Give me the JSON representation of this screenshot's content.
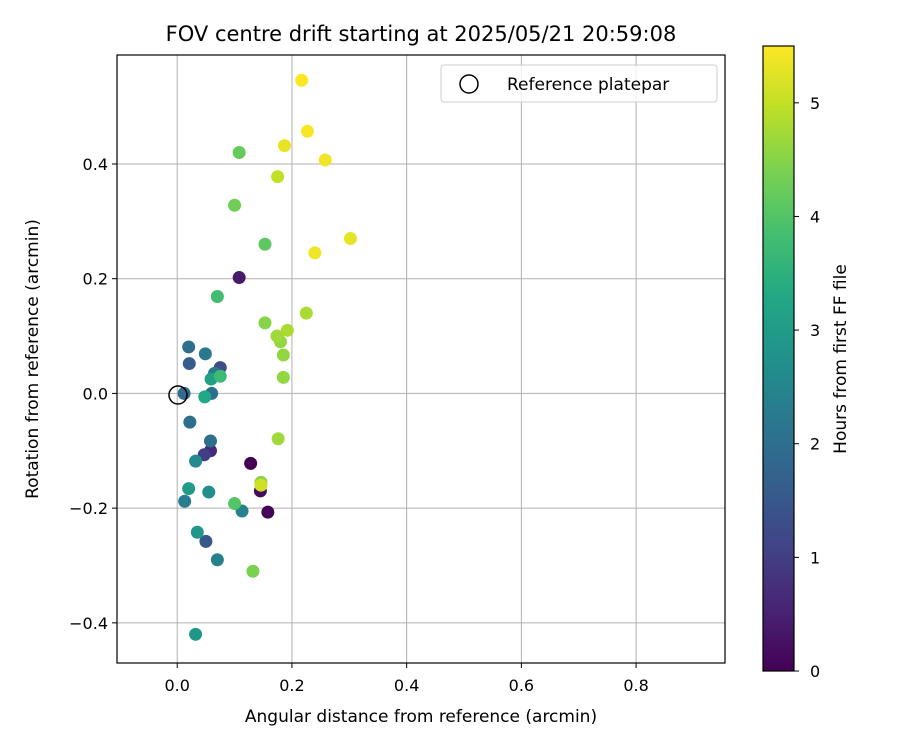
{
  "chart_data": {
    "type": "scatter",
    "title": "FOV centre drift starting at 2025/05/21 20:59:08",
    "xlabel": "Angular distance from reference (arcmin)",
    "ylabel": "Rotation from reference (arcmin)",
    "xlim": [
      -0.105,
      0.955
    ],
    "ylim": [
      -0.47,
      0.59
    ],
    "xticks": [
      0.0,
      0.2,
      0.4,
      0.6,
      0.8
    ],
    "xtick_labels": [
      "0.0",
      "0.2",
      "0.4",
      "0.6",
      "0.8"
    ],
    "yticks": [
      -0.4,
      -0.2,
      0.0,
      0.2,
      0.4
    ],
    "ytick_labels": [
      "−0.4",
      "−0.2",
      "0.0",
      "0.2",
      "0.4"
    ],
    "grid": true,
    "colormap": "viridis",
    "colorbar": {
      "label": "Hours from first FF file",
      "range": [
        0,
        5.5
      ],
      "ticks": [
        0,
        1,
        2,
        3,
        4,
        5
      ],
      "tick_labels": [
        "0",
        "1",
        "2",
        "3",
        "4",
        "5"
      ]
    },
    "reference": {
      "label": "Reference platepar",
      "x": 0.0,
      "y": 0.0
    },
    "legend": {
      "position": "top-right",
      "entries": [
        "Reference platepar"
      ]
    },
    "points": [
      {
        "x": 0.128,
        "y": -0.122,
        "h": 0.0
      },
      {
        "x": 0.158,
        "y": -0.207,
        "h": 0.05
      },
      {
        "x": 0.145,
        "y": -0.17,
        "h": 0.15
      },
      {
        "x": 0.108,
        "y": 0.202,
        "h": 0.4
      },
      {
        "x": 0.058,
        "y": -0.1,
        "h": 0.6
      },
      {
        "x": 0.047,
        "y": -0.107,
        "h": 1.0
      },
      {
        "x": 0.075,
        "y": 0.045,
        "h": 1.3
      },
      {
        "x": 0.05,
        "y": -0.258,
        "h": 1.5
      },
      {
        "x": 0.021,
        "y": 0.052,
        "h": 1.6
      },
      {
        "x": 0.012,
        "y": 0.0,
        "h": 1.9
      },
      {
        "x": 0.02,
        "y": 0.081,
        "h": 2.0
      },
      {
        "x": 0.06,
        "y": 0.0,
        "h": 2.0
      },
      {
        "x": 0.022,
        "y": -0.05,
        "h": 2.0
      },
      {
        "x": 0.058,
        "y": -0.083,
        "h": 2.0
      },
      {
        "x": 0.049,
        "y": 0.069,
        "h": 2.2
      },
      {
        "x": 0.065,
        "y": 0.035,
        "h": 2.2
      },
      {
        "x": 0.013,
        "y": -0.188,
        "h": 2.3
      },
      {
        "x": 0.07,
        "y": -0.29,
        "h": 2.4
      },
      {
        "x": 0.113,
        "y": -0.205,
        "h": 2.4
      },
      {
        "x": 0.032,
        "y": -0.118,
        "h": 2.6
      },
      {
        "x": 0.055,
        "y": -0.172,
        "h": 2.7
      },
      {
        "x": 0.035,
        "y": -0.242,
        "h": 2.9
      },
      {
        "x": 0.032,
        "y": -0.42,
        "h": 2.9
      },
      {
        "x": 0.02,
        "y": -0.166,
        "h": 3.0
      },
      {
        "x": 0.059,
        "y": 0.025,
        "h": 3.1
      },
      {
        "x": 0.048,
        "y": -0.006,
        "h": 3.3
      },
      {
        "x": 0.075,
        "y": 0.03,
        "h": 3.7
      },
      {
        "x": 0.07,
        "y": 0.169,
        "h": 3.8
      },
      {
        "x": 0.1,
        "y": -0.192,
        "h": 4.0
      },
      {
        "x": 0.153,
        "y": 0.26,
        "h": 4.1
      },
      {
        "x": 0.108,
        "y": 0.42,
        "h": 4.2
      },
      {
        "x": 0.1,
        "y": 0.328,
        "h": 4.3
      },
      {
        "x": 0.132,
        "y": -0.31,
        "h": 4.4
      },
      {
        "x": 0.146,
        "y": -0.155,
        "h": 4.5
      },
      {
        "x": 0.153,
        "y": 0.123,
        "h": 4.5
      },
      {
        "x": 0.18,
        "y": 0.09,
        "h": 4.6
      },
      {
        "x": 0.185,
        "y": 0.067,
        "h": 4.6
      },
      {
        "x": 0.185,
        "y": 0.028,
        "h": 4.6
      },
      {
        "x": 0.176,
        "y": -0.079,
        "h": 4.7
      },
      {
        "x": 0.174,
        "y": 0.1,
        "h": 4.7
      },
      {
        "x": 0.192,
        "y": 0.11,
        "h": 4.8
      },
      {
        "x": 0.225,
        "y": 0.14,
        "h": 4.8
      },
      {
        "x": 0.175,
        "y": 0.378,
        "h": 5.0
      },
      {
        "x": 0.146,
        "y": -0.16,
        "h": 5.1
      },
      {
        "x": 0.187,
        "y": 0.432,
        "h": 5.3
      },
      {
        "x": 0.24,
        "y": 0.245,
        "h": 5.4
      },
      {
        "x": 0.302,
        "y": 0.27,
        "h": 5.3
      },
      {
        "x": 0.258,
        "y": 0.407,
        "h": 5.4
      },
      {
        "x": 0.227,
        "y": 0.457,
        "h": 5.45
      },
      {
        "x": 0.217,
        "y": 0.546,
        "h": 5.5
      }
    ]
  }
}
